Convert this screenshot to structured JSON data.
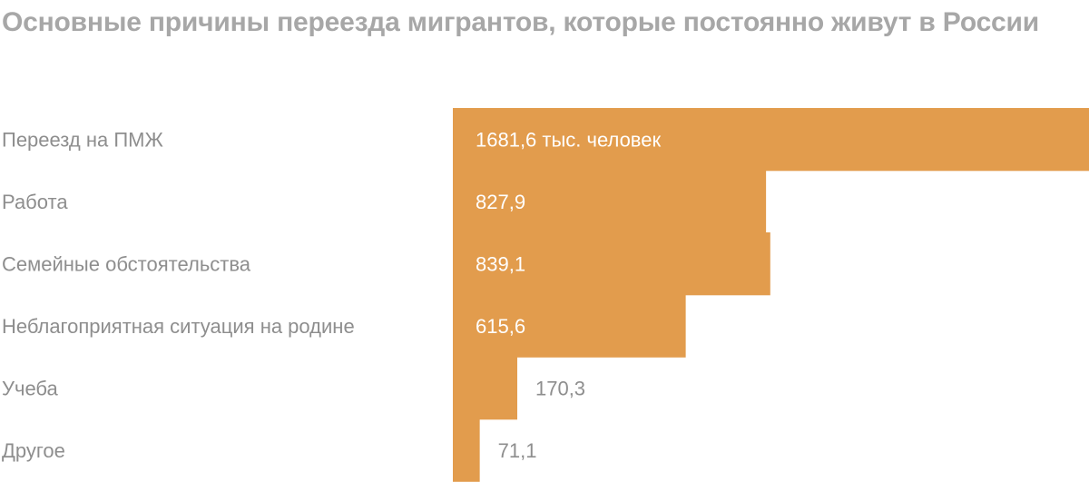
{
  "chart_data": {
    "type": "bar",
    "orientation": "horizontal",
    "title": "Основные причины переезда мигрантов, которые постоянно живут в России",
    "categories": [
      "Переезд на ПМЖ",
      "Работа",
      "Семейные обстоятельства",
      "Неблагоприятная ситуация на родине",
      "Учеба",
      "Другое"
    ],
    "values": [
      1681.6,
      827.9,
      839.1,
      615.6,
      170.3,
      71.1
    ],
    "value_labels": [
      "1681,6 тыс. человек",
      "827,9",
      "839,1",
      "615,6",
      "170,3",
      "71,1"
    ],
    "xlim": [
      0,
      1681.6
    ],
    "grid": false,
    "legend": "none",
    "bar_color": "#e29c4d"
  }
}
